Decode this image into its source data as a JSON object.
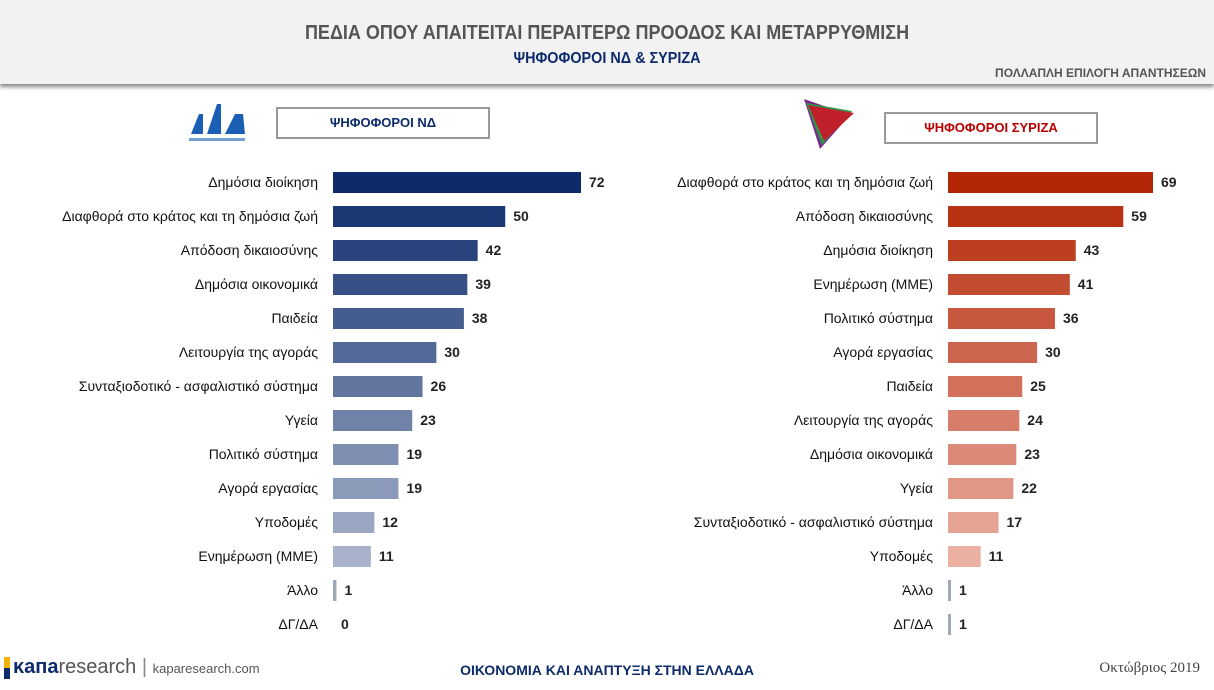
{
  "header": {
    "title": "ΠΕΔΙΑ ΟΠΟΥ ΑΠΑΙΤΕΙΤΑΙ ΠΕΡΑΙΤΕΡΩ ΠΡΟΟΔΟΣ ΚΑΙ ΜΕΤΑΡΡΥΘΜΙΣΗ",
    "subtitle": "ΨΗΦΟΦΟΡΟΙ ΝΔ & ΣΥΡΙΖΑ",
    "note": "ΠΟΛΛΑΠΛΗ ΕΠΙΛΟΓΗ ΑΠΑΝΤΗΣΕΩΝ"
  },
  "logos": {
    "nd": "ΝΔ ΝΕΑ ΔΗΜΟΚΡΑΤΙΑ",
    "syriza": "ΣΥΡΙΖΑ"
  },
  "footer": {
    "brand_bold": "κапа",
    "brand_light": "research",
    "site": "kaparesearch.com",
    "center": "ΟΙΚΟΝΟΜΙΑ ΚΑΙ ΑΝΑΠΤΥΞΗ ΣΤΗΝ ΕΛΛΑΔΑ",
    "date": "Οκτώβριος 2019"
  },
  "chart_data": [
    {
      "type": "bar",
      "orientation": "horizontal",
      "title": "ΨΗΦΟΦΟΡΟΙ ΝΔ",
      "color_start": "#0d2b6b",
      "color_end": "#a8b3cb",
      "categories": [
        "Δημόσια διοίκηση",
        "Διαφθορά στο κράτος και τη δημόσια ζωή",
        "Απόδοση δικαιοσύνης",
        "Δημόσια οικονομικά",
        "Παιδεία",
        "Λειτουργία της αγοράς",
        "Συνταξιοδοτικό - ασφαλιστικό σύστημα",
        "Υγεία",
        "Πολιτικό σύστημα",
        "Αγορά εργασίας",
        "Υποδομές",
        "Ενημέρωση (ΜΜΕ)",
        "Άλλο",
        "ΔΓ/ΔΑ"
      ],
      "values": [
        72,
        50,
        42,
        39,
        38,
        30,
        26,
        23,
        19,
        19,
        12,
        11,
        1,
        0
      ]
    },
    {
      "type": "bar",
      "orientation": "horizontal",
      "title": "ΨΗΦΟΦΟΡΟΙ ΣΥΡΙΖΑ",
      "color_start": "#b32606",
      "color_end": "#eab0a2",
      "categories": [
        "Διαφθορά στο κράτος και τη δημόσια ζωή",
        "Απόδοση δικαιοσύνης",
        "Δημόσια διοίκηση",
        "Ενημέρωση (ΜΜΕ)",
        "Πολιτικό σύστημα",
        "Αγορά εργασίας",
        "Παιδεία",
        "Λειτουργία της αγοράς",
        "Δημόσια οικονομικά",
        "Υγεία",
        "Συνταξιοδοτικό - ασφαλιστικό σύστημα",
        "Υποδομές",
        "Άλλο",
        "ΔΓ/ΔΑ"
      ],
      "values": [
        69,
        59,
        43,
        41,
        36,
        30,
        25,
        24,
        23,
        22,
        17,
        11,
        1,
        1
      ]
    }
  ]
}
